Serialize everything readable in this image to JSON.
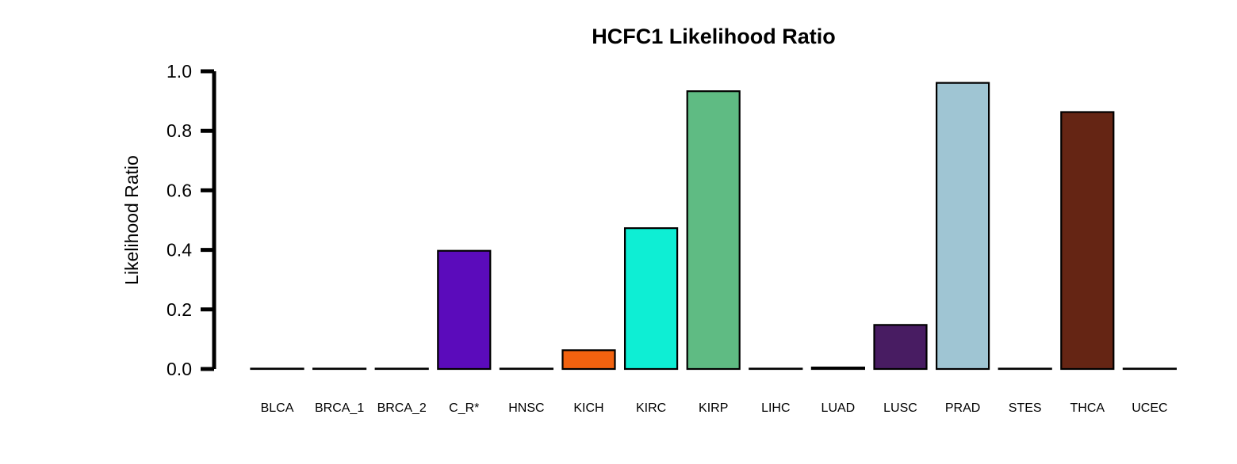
{
  "chart_data": {
    "type": "bar",
    "title": "HCFC1 Likelihood Ratio",
    "xlabel": "",
    "ylabel": "Likelihood Ratio",
    "ylim": [
      0,
      1.0
    ],
    "yticks": [
      "0.0",
      "0.2",
      "0.4",
      "0.6",
      "0.8",
      "1.0"
    ],
    "grid": false,
    "legend": "none",
    "categories": [
      "BLCA",
      "BRCA_1",
      "BRCA_2",
      "C_R*",
      "HNSC",
      "KICH",
      "KIRC",
      "KIRP",
      "LIHC",
      "LUAD",
      "LUSC",
      "PRAD",
      "STES",
      "THCA",
      "UCEC"
    ],
    "values": [
      0.0,
      0.0,
      0.0,
      0.397,
      0.0,
      0.063,
      0.473,
      0.933,
      0.0,
      0.005,
      0.148,
      0.961,
      0.0,
      0.863,
      0.0
    ],
    "colors": [
      "#ffffff",
      "#ffffff",
      "#ffffff",
      "#5b0bbb",
      "#ffffff",
      "#f2620f",
      "#0eeed4",
      "#5fbb83",
      "#ffffff",
      "#ffffff",
      "#481c62",
      "#9fc5d3",
      "#ffffff",
      "#652514",
      "#ffffff"
    ]
  }
}
